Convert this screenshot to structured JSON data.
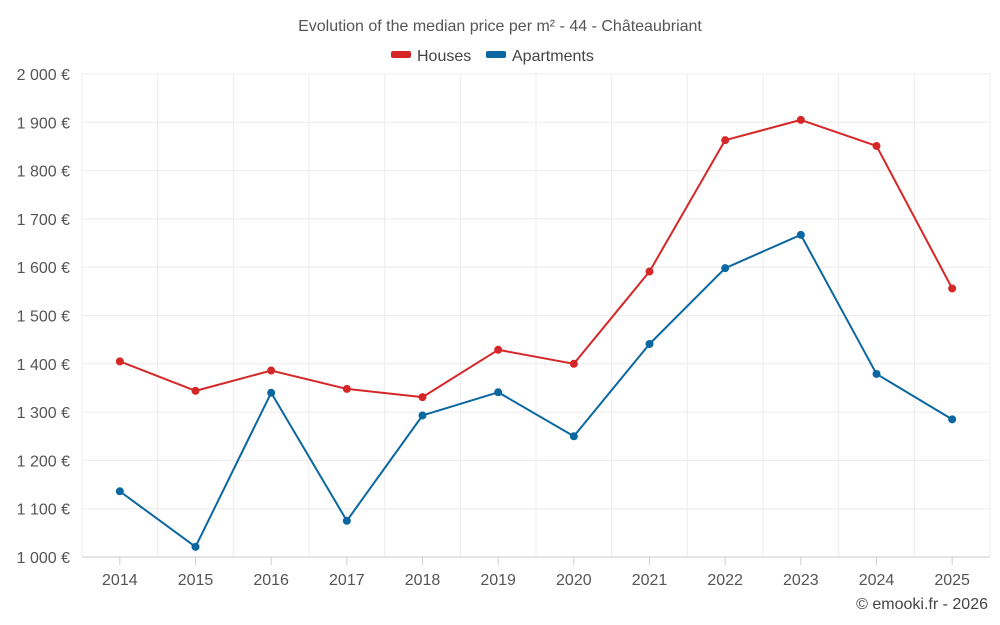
{
  "chart_data": {
    "type": "line",
    "title": "Evolution of the median price per m² - 44 - Châteaubriant",
    "xlabel": "",
    "ylabel": "",
    "categories": [
      "2014",
      "2015",
      "2016",
      "2017",
      "2018",
      "2019",
      "2020",
      "2021",
      "2022",
      "2023",
      "2024",
      "2025"
    ],
    "ylim": [
      1000,
      2000
    ],
    "yticks": [
      1000,
      1100,
      1200,
      1300,
      1400,
      1500,
      1600,
      1700,
      1800,
      1900,
      2000
    ],
    "ytick_labels": [
      "1 000 €",
      "1 100 €",
      "1 200 €",
      "1 300 €",
      "1 400 €",
      "1 500 €",
      "1 600 €",
      "1 700 €",
      "1 800 €",
      "1 900 €",
      "2 000 €"
    ],
    "grid": true,
    "legend_position": "top-center",
    "series": [
      {
        "name": "Houses",
        "color": "#d62728",
        "values": [
          1405,
          1344,
          1386,
          1348,
          1331,
          1429,
          1400,
          1591,
          1863,
          1905,
          1851,
          1556
        ]
      },
      {
        "name": "Apartments",
        "color": "#0a67a0",
        "values": [
          1136,
          1021,
          1340,
          1075,
          1293,
          1341,
          1250,
          1441,
          1598,
          1667,
          1379,
          1285
        ]
      }
    ]
  },
  "credit": "© emooki.fr - 2026"
}
